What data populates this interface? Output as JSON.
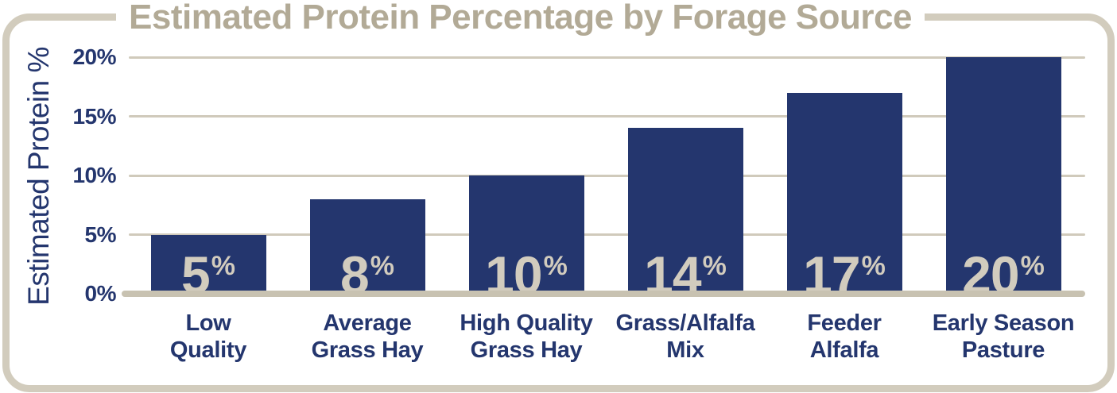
{
  "title": "Estimated Protein Percentage by Forage Source",
  "y_axis": {
    "label": "Estimated Protein %",
    "ticks": [
      "20%",
      "15%",
      "10%",
      "5%",
      "0%"
    ]
  },
  "chart_data": {
    "type": "bar",
    "title": "Estimated Protein Percentage by Forage Source",
    "ylabel": "Estimated Protein %",
    "xlabel": "",
    "ylim": [
      0,
      20
    ],
    "yticks": [
      0,
      5,
      10,
      15,
      20
    ],
    "grid": true,
    "legend": false,
    "categories": [
      "Low Quality",
      "Average Grass Hay",
      "High Quality Grass Hay",
      "Grass/Alfalfa Mix",
      "Feeder Alfalfa",
      "Early Season Pasture"
    ],
    "category_lines": [
      [
        "Low",
        "Quality"
      ],
      [
        "Average",
        "Grass Hay"
      ],
      [
        "High Quality",
        "Grass Hay"
      ],
      [
        "Grass/Alfalfa",
        "Mix"
      ],
      [
        "Feeder",
        "Alfalfa"
      ],
      [
        "Early Season",
        "Pasture"
      ]
    ],
    "values": [
      5,
      8,
      10,
      14,
      17,
      20
    ],
    "value_suffix": "%"
  },
  "colors": {
    "bar_navy": "#24366E",
    "text_navy": "#24366E",
    "title_tan": "#B2AA96",
    "value_tan": "#D2CCBE",
    "gridline_tan": "#D0CABB",
    "axis_line_tan": "#C8C2B1",
    "border_tan": "#D2CCBD",
    "background": "#FFFFFF"
  }
}
